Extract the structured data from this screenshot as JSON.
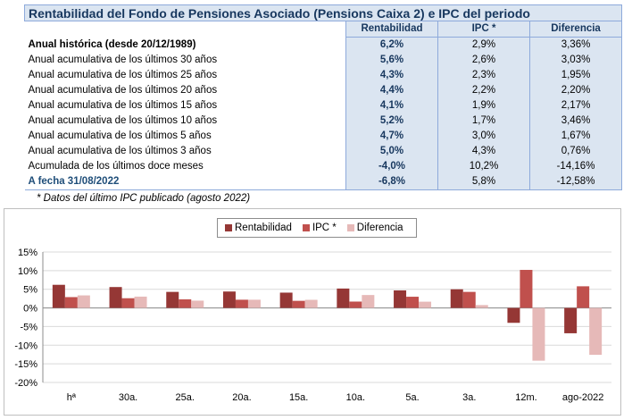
{
  "table": {
    "title": "Rentabilidad del Fondo de Pensiones Asociado (Pensions Caixa 2) e IPC del periodo",
    "headers": [
      "Rentabilidad",
      "IPC *",
      "Diferencia"
    ],
    "rows": [
      {
        "label": "Anual histórica (desde 20/12/1989)",
        "rent": "6,2%",
        "ipc": "2,9%",
        "dif": "3,36%",
        "style": "bold"
      },
      {
        "label": "Anual acumulativa de los últimos 30 años",
        "rent": "5,6%",
        "ipc": "2,6%",
        "dif": "3,03%",
        "style": "normal"
      },
      {
        "label": "Anual acumulativa de los últimos 25 años",
        "rent": "4,3%",
        "ipc": "2,3%",
        "dif": "1,95%",
        "style": "normal"
      },
      {
        "label": "Anual acumulativa de los últimos 20 años",
        "rent": "4,4%",
        "ipc": "2,2%",
        "dif": "2,20%",
        "style": "normal"
      },
      {
        "label": "Anual acumulativa de los últimos 15 años",
        "rent": "4,1%",
        "ipc": "1,9%",
        "dif": "2,17%",
        "style": "normal"
      },
      {
        "label": "Anual acumulativa de los últimos 10 años",
        "rent": "5,2%",
        "ipc": "1,7%",
        "dif": "3,46%",
        "style": "normal"
      },
      {
        "label": "Anual acumulativa de los últimos 5 años",
        "rent": "4,7%",
        "ipc": "3,0%",
        "dif": "1,67%",
        "style": "normal"
      },
      {
        "label": "Anual acumulativa de los últimos 3 años",
        "rent": "5,0%",
        "ipc": "4,3%",
        "dif": "0,76%",
        "style": "normal"
      },
      {
        "label": "Acumulada de los últimos doce meses",
        "rent": "-4,0%",
        "ipc": "10,2%",
        "dif": "-14,16%",
        "style": "normal"
      },
      {
        "label": "A fecha 31/08/2022",
        "rent": "-6,8%",
        "ipc": "5,8%",
        "dif": "-12,58%",
        "style": "blue"
      }
    ],
    "footnote": "* Datos del último IPC publicado (agosto 2022)"
  },
  "chart_data": {
    "type": "bar",
    "categories": [
      "hª",
      "30a.",
      "25a.",
      "20a.",
      "15a.",
      "10a.",
      "5a.",
      "3a.",
      "12m.",
      "ago-2022"
    ],
    "series": [
      {
        "name": "Rentabilidad",
        "color": "#953735",
        "values": [
          6.2,
          5.6,
          4.3,
          4.4,
          4.1,
          5.2,
          4.7,
          5.0,
          -4.0,
          -6.8
        ]
      },
      {
        "name": "IPC *",
        "color": "#c0504d",
        "values": [
          2.9,
          2.6,
          2.3,
          2.2,
          1.9,
          1.7,
          3.0,
          4.3,
          10.2,
          5.8
        ]
      },
      {
        "name": "Diferencia",
        "color": "#e6b9b8",
        "values": [
          3.36,
          3.03,
          1.95,
          2.2,
          2.17,
          3.46,
          1.67,
          0.76,
          -14.16,
          -12.58
        ]
      }
    ],
    "yticks": [
      "15%",
      "10%",
      "5%",
      "0%",
      "-5%",
      "-10%",
      "-15%",
      "-20%"
    ],
    "ylim": [
      -20,
      15
    ],
    "grid": true,
    "legend_position": "top-center"
  }
}
